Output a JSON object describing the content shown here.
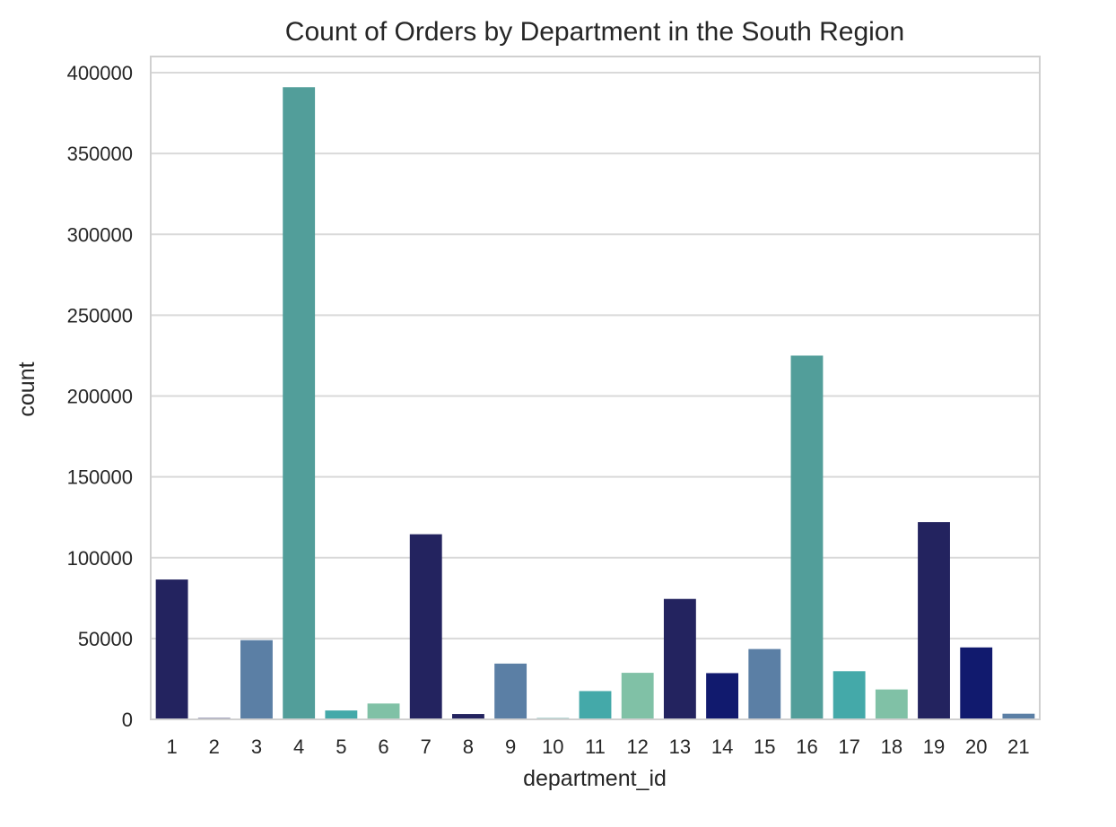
{
  "chart_data": {
    "type": "bar",
    "title": "Count of Orders by Department in the South Region",
    "xlabel": "department_id",
    "ylabel": "count",
    "categories": [
      "1",
      "2",
      "3",
      "4",
      "5",
      "6",
      "7",
      "8",
      "9",
      "10",
      "11",
      "12",
      "13",
      "14",
      "15",
      "16",
      "17",
      "18",
      "19",
      "20",
      "21"
    ],
    "values": [
      86500,
      800,
      49000,
      391000,
      5500,
      9800,
      114500,
      3300,
      34500,
      800,
      17500,
      28800,
      74500,
      28600,
      43500,
      225000,
      29800,
      18500,
      122000,
      44500,
      3500
    ],
    "colors": [
      "#23235f",
      "#23235f",
      "#5b7fa5",
      "#529e9a",
      "#44a9a9",
      "#80c1a6",
      "#23235f",
      "#23235f",
      "#5b7fa5",
      "#529e9a",
      "#44a9a9",
      "#80c1a6",
      "#23235f",
      "#111a6e",
      "#5b7fa5",
      "#529e9a",
      "#44a9a9",
      "#80c1a6",
      "#23235f",
      "#111a6e",
      "#5b7fa5"
    ],
    "ylim": [
      0,
      410000
    ],
    "yticks": [
      0,
      50000,
      100000,
      150000,
      200000,
      250000,
      300000,
      350000,
      400000
    ],
    "grid": "horizontal",
    "gridColor": "#d9d9d9",
    "spineColor": "#d0d0d0"
  }
}
